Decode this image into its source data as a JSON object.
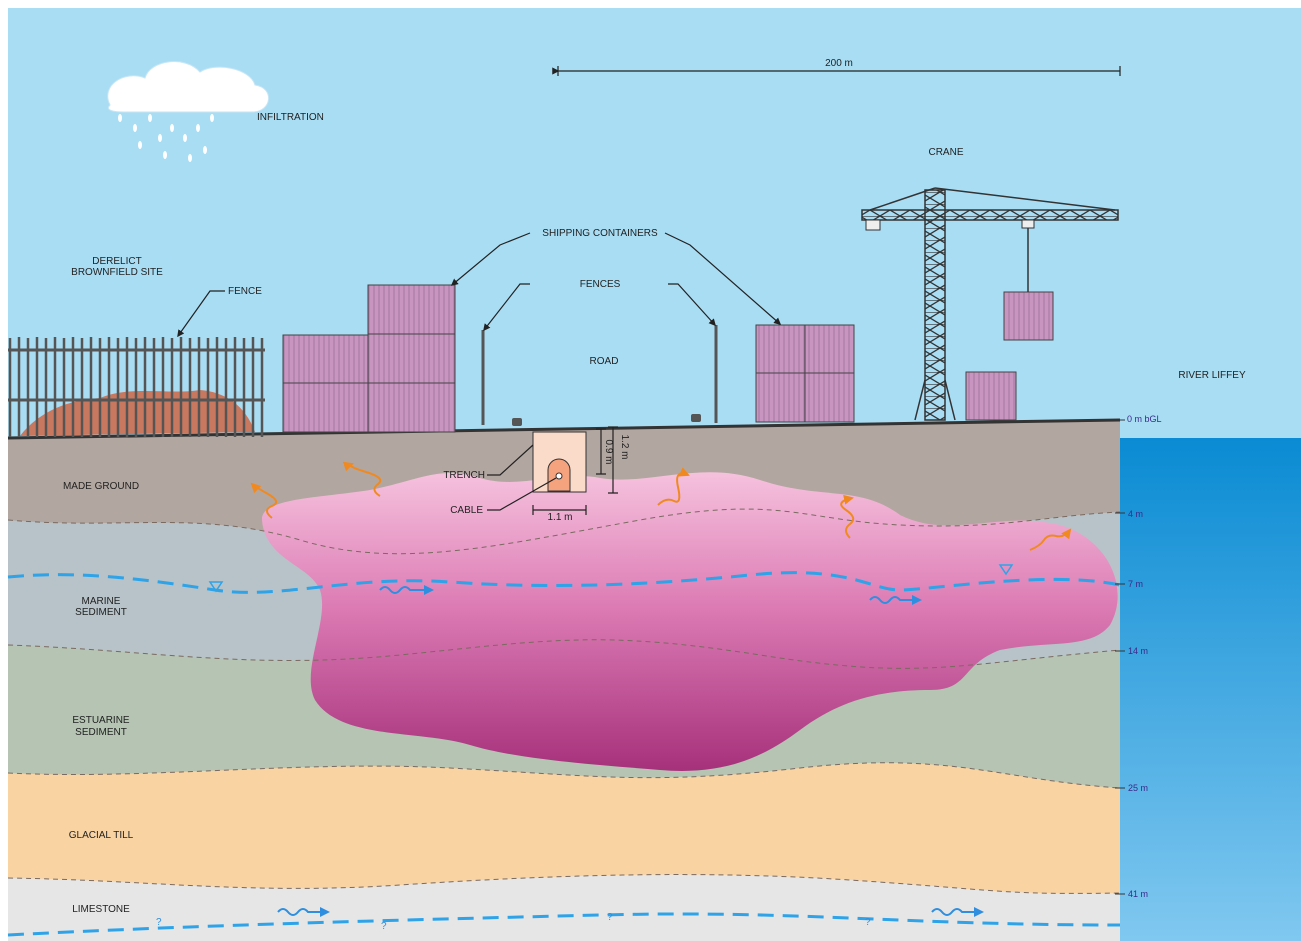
{
  "scale_bar": "200 m",
  "labels": {
    "infiltration": "INFILTRATION",
    "crane": "CRANE",
    "shipping_containers": "SHIPPING CONTAINERS",
    "derelict_site": [
      "DERELICT",
      "BROWNFIELD SITE"
    ],
    "fence": "FENCE",
    "fences": "FENCES",
    "road": "ROAD",
    "river": "RIVER LIFFEY",
    "trench": "TRENCH",
    "cable": "CABLE"
  },
  "trench_dimensions": {
    "depth_outer": "1.2 m",
    "depth_inner": "0.9 m",
    "width": "1.1 m"
  },
  "layers": [
    {
      "name": [
        "MADE GROUND"
      ]
    },
    {
      "name": [
        "MARINE",
        "SEDIMENT"
      ]
    },
    {
      "name": [
        "ESTUARINE",
        "SEDIMENT"
      ]
    },
    {
      "name": [
        "GLACIAL TILL"
      ]
    },
    {
      "name": [
        "LIMESTONE"
      ]
    }
  ],
  "depths": [
    "0 m bGL",
    "4 m",
    "7 m",
    "14 m",
    "25 m",
    "41 m"
  ],
  "unknown_markers": [
    "?",
    "?",
    "?",
    "?"
  ]
}
